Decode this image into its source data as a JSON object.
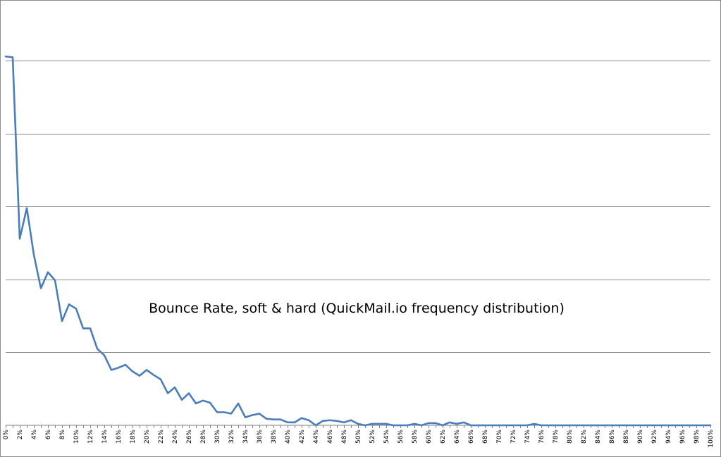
{
  "chart_data": {
    "type": "line",
    "title": "Bounce Rate, soft & hard (QuickMail.io frequency distribution)",
    "xlabel": "",
    "ylabel": "",
    "x_tick_labels": [
      "0%",
      "2%",
      "4%",
      "6%",
      "8%",
      "10%",
      "12%",
      "14%",
      "16%",
      "18%",
      "20%",
      "22%",
      "24%",
      "26%",
      "28%",
      "30%",
      "32%",
      "34%",
      "36%",
      "38%",
      "40%",
      "42%",
      "44%",
      "46%",
      "48%",
      "50%",
      "52%",
      "54%",
      "56%",
      "58%",
      "60%",
      "62%",
      "64%",
      "66%",
      "68%",
      "70%",
      "72%",
      "74%",
      "76%",
      "78%",
      "80%",
      "82%",
      "84%",
      "86%",
      "88%",
      "90%",
      "92%",
      "94%",
      "96%",
      "98%",
      "100%"
    ],
    "xlim": [
      0,
      100
    ],
    "ylim": [
      0,
      5.7
    ],
    "y_gridlines": [
      1,
      2,
      3,
      4,
      5
    ],
    "y_tick_labels_visible": false,
    "grid": true,
    "legend": "none",
    "series": [
      {
        "color": "#4a7ebb",
        "x": [
          0,
          1,
          2,
          3,
          4,
          5,
          6,
          7,
          8,
          9,
          10,
          11,
          12,
          13,
          14,
          15,
          16,
          17,
          18,
          19,
          20,
          21,
          22,
          23,
          24,
          25,
          26,
          27,
          28,
          29,
          30,
          31,
          32,
          33,
          34,
          35,
          36,
          37,
          38,
          39,
          40,
          41,
          42,
          43,
          44,
          45,
          46,
          47,
          48,
          49,
          50,
          51,
          52,
          53,
          54,
          55,
          56,
          57,
          58,
          59,
          60,
          61,
          62,
          63,
          64,
          65,
          66,
          67,
          68,
          69,
          70,
          71,
          72,
          73,
          74,
          75,
          76,
          77,
          78,
          79,
          80,
          81,
          82,
          83,
          84,
          85,
          86,
          87,
          88,
          89,
          90,
          91,
          92,
          93,
          94,
          95,
          96,
          97,
          98,
          99,
          100
        ],
        "values": [
          5.06,
          5.05,
          2.56,
          2.98,
          2.34,
          1.88,
          2.1,
          1.99,
          1.43,
          1.66,
          1.6,
          1.33,
          1.33,
          1.05,
          0.96,
          0.76,
          0.79,
          0.83,
          0.74,
          0.68,
          0.76,
          0.69,
          0.63,
          0.44,
          0.52,
          0.35,
          0.44,
          0.3,
          0.34,
          0.31,
          0.18,
          0.18,
          0.16,
          0.3,
          0.11,
          0.14,
          0.16,
          0.09,
          0.08,
          0.08,
          0.04,
          0.04,
          0.1,
          0.07,
          0.0,
          0.06,
          0.07,
          0.06,
          0.04,
          0.07,
          0.02,
          0.0,
          0.02,
          0.02,
          0.02,
          0.0,
          0.0,
          0.0,
          0.02,
          0.0,
          0.03,
          0.03,
          0.0,
          0.04,
          0.02,
          0.04,
          0.0,
          0.0,
          0.0,
          0.0,
          0.0,
          0.0,
          0.0,
          0.0,
          0.0,
          0.02,
          0.0,
          0.0,
          0.0,
          0.0,
          0.0,
          0.0,
          0.0,
          0.0,
          0.0,
          0.0,
          0.0,
          0.0,
          0.0,
          0.0,
          0.0,
          0.0,
          0.0,
          0.0,
          0.0,
          0.0,
          0.0,
          0.0,
          0.0,
          0.0,
          0.0
        ]
      }
    ]
  }
}
